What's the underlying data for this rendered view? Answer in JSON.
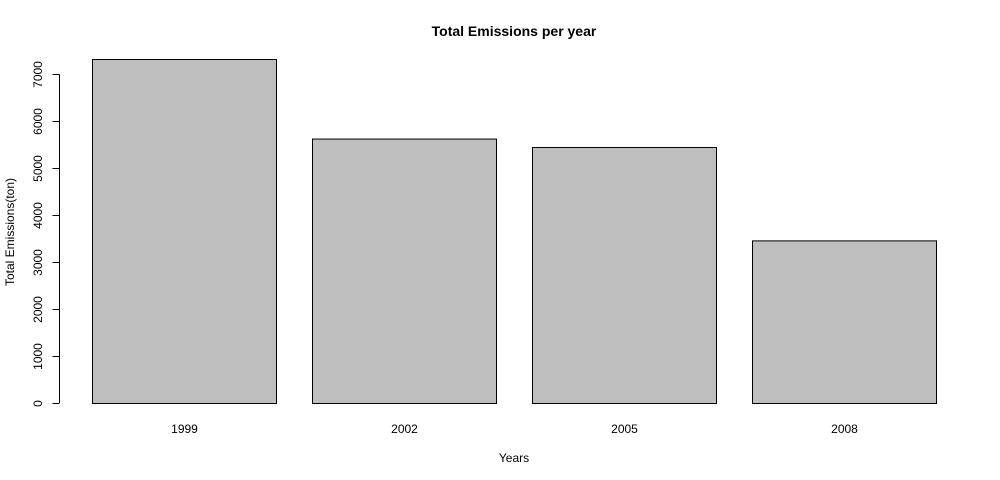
{
  "chart_data": {
    "type": "bar",
    "title": "Total Emissions per year",
    "xlabel": "Years",
    "ylabel": "Total Emissions(ton)",
    "categories": [
      "1999",
      "2002",
      "2005",
      "2008"
    ],
    "values": [
      7330,
      5635,
      5455,
      3465
    ],
    "yticks": [
      0,
      1000,
      2000,
      3000,
      4000,
      5000,
      6000,
      7000
    ],
    "ytick_labels": [
      "0",
      "1000",
      "2000",
      "3000",
      "4000",
      "5000",
      "6000",
      "7000"
    ],
    "ylim": [
      0,
      7330
    ],
    "bar_color": "#bebebe",
    "bar_edge_color": "#000000",
    "grid": false,
    "legend": "none"
  }
}
